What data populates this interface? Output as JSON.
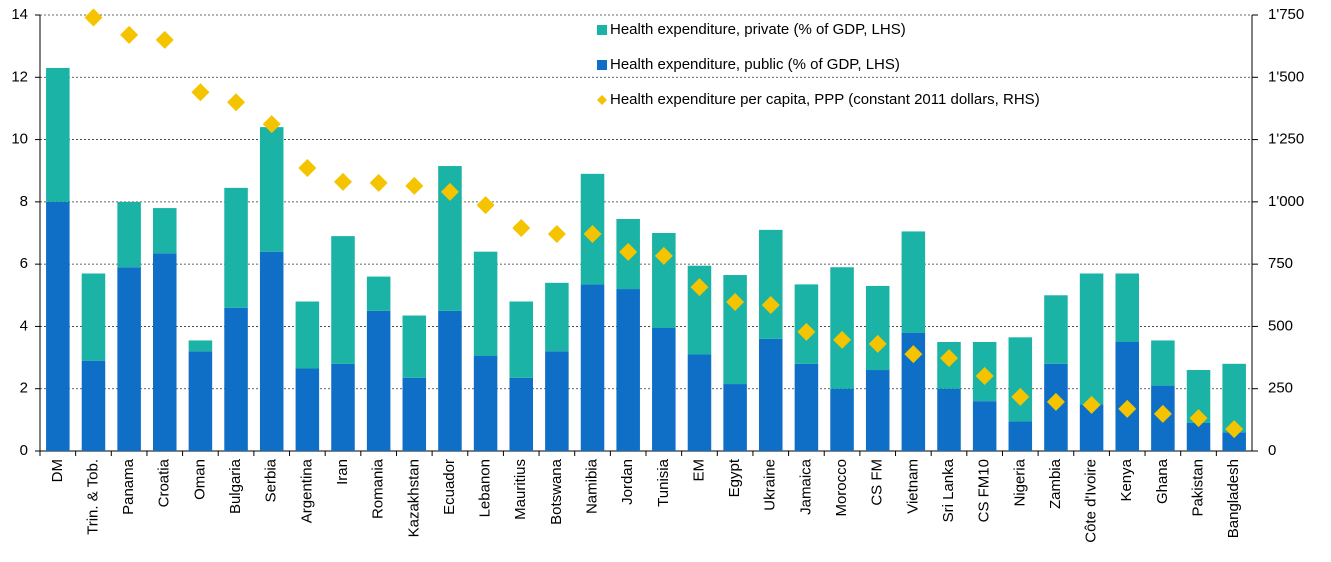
{
  "chart_data": {
    "type": "bar",
    "categories": [
      "DM",
      "Trin. & Tob.",
      "Panama",
      "Croatia",
      "Oman",
      "Bulgaria",
      "Serbia",
      "Argentina",
      "Iran",
      "Romania",
      "Kazakhstan",
      "Ecuador",
      "Lebanon",
      "Mauritius",
      "Botswana",
      "Namibia",
      "Jordan",
      "Tunisia",
      "EM",
      "Egypt",
      "Ukraine",
      "Jamaica",
      "Morocco",
      "CS FM",
      "Vietnam",
      "Sri Lanka",
      "CS FM10",
      "Nigeria",
      "Zambia",
      "Côte d'Ivoire",
      "Kenya",
      "Ghana",
      "Pakistan",
      "Bangladesh"
    ],
    "series": [
      {
        "name": "Health expenditure, private (% of GDP, LHS)",
        "color": "#1ab3a6",
        "type": "bar",
        "stack": 1,
        "values": [
          4.3,
          2.8,
          2.1,
          1.45,
          0.35,
          3.85,
          4.0,
          2.15,
          4.1,
          1.1,
          2.0,
          4.65,
          3.35,
          2.45,
          2.2,
          3.55,
          2.25,
          3.05,
          2.85,
          3.5,
          3.5,
          2.55,
          3.9,
          2.7,
          3.25,
          1.5,
          1.9,
          2.7,
          2.2,
          4.2,
          2.2,
          1.45,
          1.7,
          2.2
        ]
      },
      {
        "name": "Health expenditure, public (% of GDP, LHS)",
        "color": "#0f6fc6",
        "type": "bar",
        "stack": 0,
        "values": [
          8.0,
          2.9,
          5.9,
          6.35,
          3.2,
          4.6,
          6.4,
          2.65,
          2.8,
          4.5,
          2.35,
          4.5,
          3.05,
          2.35,
          3.2,
          5.35,
          5.2,
          3.95,
          3.1,
          2.15,
          3.6,
          2.8,
          2.0,
          2.6,
          3.8,
          2.0,
          1.6,
          0.95,
          2.8,
          1.5,
          3.5,
          2.1,
          0.9,
          0.6
        ]
      },
      {
        "name": "Health expenditure per capita, PPP (constant 2011 dollars, RHS)",
        "color": "#f5c400",
        "type": "scatter",
        "axis": "y2",
        "values": [
          null,
          1740,
          1670,
          1650,
          1440,
          1400,
          1312,
          1136,
          1080,
          1076,
          1064,
          1040,
          987,
          895,
          871,
          871,
          799,
          783,
          658,
          598,
          586,
          478,
          446,
          430,
          389,
          373,
          301,
          217,
          197,
          185,
          169,
          149,
          132,
          88
        ]
      }
    ],
    "ylim": [
      0,
      14
    ],
    "yticks": [
      0,
      2,
      4,
      6,
      8,
      10,
      12,
      14
    ],
    "y2lim": [
      0,
      1750
    ],
    "y2ticks": [
      0,
      250,
      500,
      750,
      {
        "value": 1000,
        "label": "1'000"
      },
      {
        "value": 1250,
        "label": "1'250"
      },
      {
        "value": 1500,
        "label": "1'500"
      },
      {
        "value": 1750,
        "label": "1'750"
      }
    ],
    "grid": true,
    "legend": "top-right"
  }
}
